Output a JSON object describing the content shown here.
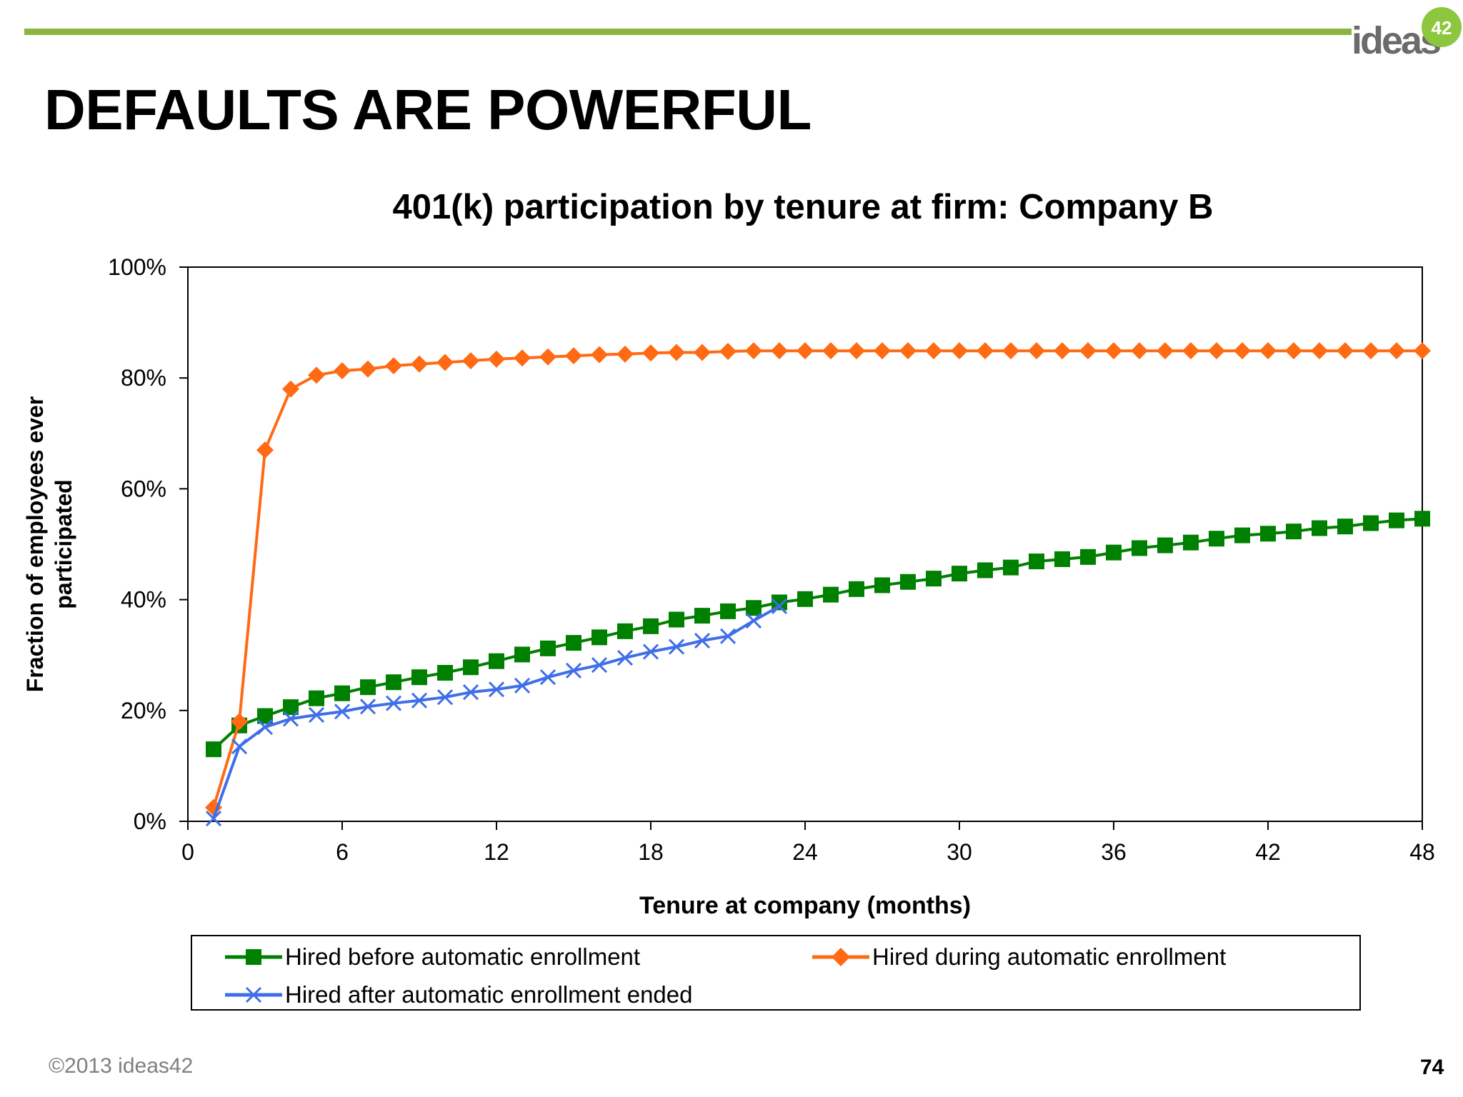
{
  "slide": {
    "title": "DEFAULTS ARE POWERFUL",
    "copyright": "©2013 ideas42",
    "page_number": "74",
    "logo": {
      "word": "ideas",
      "number": "42",
      "color": "#8DC63F"
    },
    "accent_color": "#8DB43E"
  },
  "chart_data": {
    "type": "line",
    "title": "401(k) participation by tenure at firm: Company B",
    "xlabel": "Tenure at company (months)",
    "ylabel": "Fraction of employees ever participated",
    "xlim": [
      0,
      48
    ],
    "ylim": [
      0,
      100
    ],
    "x_ticks": [
      "0",
      "6",
      "12",
      "18",
      "24",
      "30",
      "36",
      "42",
      "48"
    ],
    "y_ticks": [
      "0%",
      "20%",
      "40%",
      "60%",
      "80%",
      "100%"
    ],
    "grid": false,
    "legend_position": "bottom",
    "series": [
      {
        "name": "Hired before automatic enrollment",
        "color": "#008000",
        "marker": "square",
        "x": [
          1,
          2,
          3,
          4,
          5,
          6,
          7,
          8,
          9,
          10,
          11,
          12,
          13,
          14,
          15,
          16,
          17,
          18,
          19,
          20,
          21,
          22,
          23,
          24,
          25,
          26,
          27,
          28,
          29,
          30,
          31,
          32,
          33,
          34,
          35,
          36,
          37,
          38,
          39,
          40,
          41,
          42,
          43,
          44,
          45,
          46,
          47,
          48
        ],
        "values": [
          13.0,
          17.3,
          19.0,
          20.6,
          22.2,
          23.1,
          24.2,
          25.1,
          26.0,
          26.8,
          27.8,
          28.9,
          30.1,
          31.2,
          32.2,
          33.2,
          34.3,
          35.2,
          36.4,
          37.1,
          37.9,
          38.5,
          39.5,
          40.1,
          40.9,
          41.9,
          42.6,
          43.2,
          43.8,
          44.7,
          45.3,
          45.8,
          46.9,
          47.3,
          47.7,
          48.5,
          49.3,
          49.8,
          50.3,
          51.0,
          51.6,
          51.9,
          52.3,
          52.9,
          53.2,
          53.8,
          54.3,
          54.6
        ]
      },
      {
        "name": "Hired during automatic enrollment",
        "color": "#FF6A13",
        "marker": "diamond",
        "x": [
          1,
          2,
          3,
          4,
          5,
          6,
          7,
          8,
          9,
          10,
          11,
          12,
          13,
          14,
          15,
          16,
          17,
          18,
          19,
          20,
          21,
          22,
          23,
          24,
          25,
          26,
          27,
          28,
          29,
          30,
          31,
          32,
          33,
          34,
          35,
          36,
          37,
          38,
          39,
          40,
          41,
          42,
          43,
          44,
          45,
          46,
          47,
          48
        ],
        "values": [
          2.5,
          18.0,
          67.0,
          78.0,
          80.5,
          81.3,
          81.6,
          82.2,
          82.5,
          82.8,
          83.1,
          83.4,
          83.6,
          83.8,
          84.0,
          84.2,
          84.3,
          84.5,
          84.6,
          84.6,
          84.8,
          84.9,
          84.9,
          84.9,
          84.9,
          84.9,
          84.9,
          84.9,
          84.9,
          84.9,
          84.9,
          84.9,
          84.9,
          84.9,
          84.9,
          84.9,
          84.9,
          84.9,
          84.9,
          84.9,
          84.9,
          84.9,
          84.9,
          84.9,
          84.9,
          84.9,
          84.9,
          84.9
        ]
      },
      {
        "name": "Hired after automatic enrollment ended",
        "color": "#3F6EE8",
        "marker": "x",
        "x": [
          1,
          2,
          3,
          4,
          5,
          6,
          7,
          8,
          9,
          10,
          11,
          12,
          13,
          14,
          15,
          16,
          17,
          18,
          19,
          20,
          21,
          22,
          23
        ],
        "values": [
          0.5,
          13.5,
          17.0,
          18.5,
          19.2,
          19.8,
          20.7,
          21.3,
          21.8,
          22.4,
          23.3,
          23.8,
          24.5,
          26.0,
          27.2,
          28.2,
          29.5,
          30.6,
          31.5,
          32.6,
          33.4,
          36.2,
          38.8
        ]
      }
    ]
  }
}
